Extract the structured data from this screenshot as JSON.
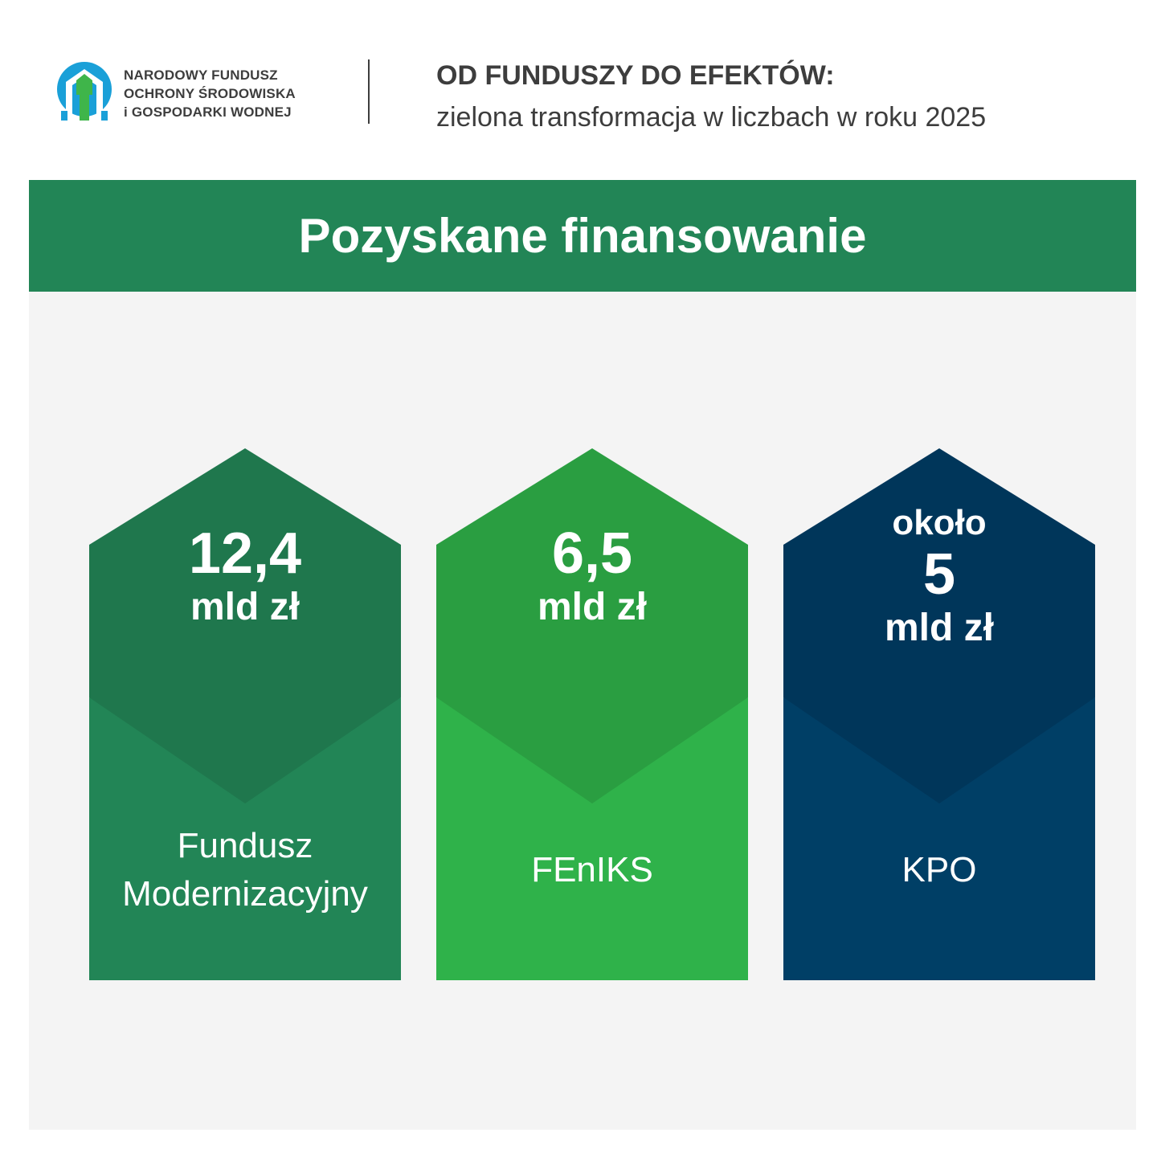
{
  "header": {
    "org_lines": [
      "NARODOWY FUNDUSZ",
      "OCHRONY ŚRODOWISKA",
      "i GOSPODARKI WODNEJ"
    ],
    "headline": "OD FUNDUSZY DO EFEKTÓW:",
    "subline": "zielona transformacja w liczbach w roku 2025"
  },
  "section": {
    "title": "Pozyskane finansowanie"
  },
  "cards": [
    {
      "prefix": "",
      "value": "12,4",
      "unit": "mld zł",
      "label": "Fundusz Modernizacyjny",
      "top_color": "#1f774d",
      "bottom_color": "#228556"
    },
    {
      "prefix": "",
      "value": "6,5",
      "unit": "mld zł",
      "label": "FEnIKS",
      "top_color": "#2a9e41",
      "bottom_color": "#2fb24a"
    },
    {
      "prefix": "około",
      "value": "5",
      "unit": "mld zł",
      "label": "KPO",
      "top_color": "#00365a",
      "bottom_color": "#003f66"
    }
  ],
  "colors": {
    "brand_green": "#228556",
    "panel_bg": "#f4f4f4",
    "text_dark": "#3d3d3d",
    "logo_blue": "#1aa0d8",
    "logo_green": "#3fb54a"
  },
  "icons": {
    "logo": "nfosigw-logo-icon"
  }
}
